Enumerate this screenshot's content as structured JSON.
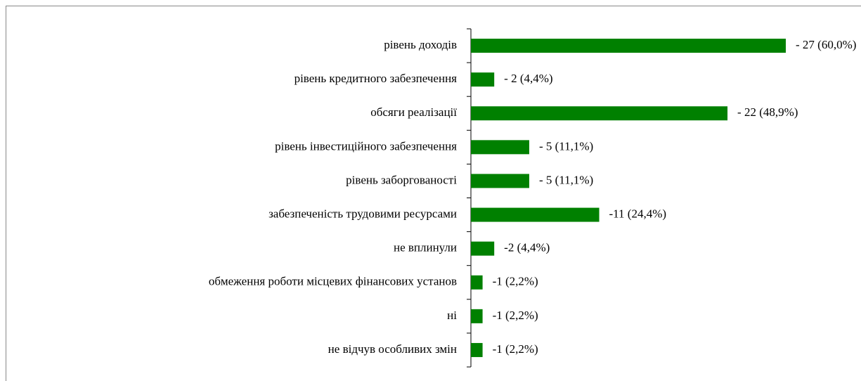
{
  "chart_data": {
    "type": "bar",
    "orientation": "horizontal",
    "categories": [
      "рівень доходів",
      "рівень кредитного забезпечення",
      "обсяги реалізації",
      "рівень інвестиційного забезпечення",
      "рівень заборгованості",
      "забезпеченість трудовими ресурсами",
      "не вплинули",
      "обмеження роботи місцевих фінансових установ",
      "ні",
      "не відчув особливих змін"
    ],
    "values": [
      27,
      2,
      22,
      5,
      5,
      11,
      2,
      1,
      1,
      1
    ],
    "value_labels": [
      "- 27 (60,0%)",
      "- 2 (4,4%)",
      "- 22 (48,9%)",
      "- 5 (11,1%)",
      "- 5 (11,1%)",
      "-11 (24,4%)",
      "-2 (4,4%)",
      "-1 (2,2%)",
      "-1 (2,2%)",
      "-1 (2,2%)"
    ],
    "color": "#008000"
  }
}
